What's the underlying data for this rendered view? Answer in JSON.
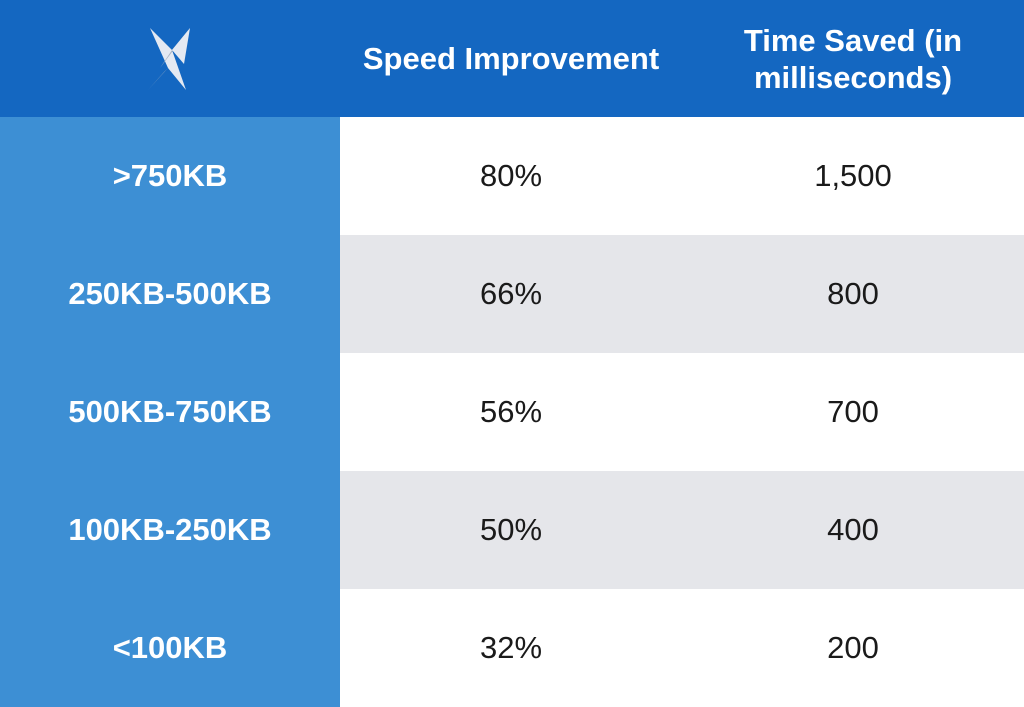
{
  "colors": {
    "header_bg": "#1467c1",
    "label_col_bg": "#3d8fd4",
    "row_light": "#ffffff",
    "row_shaded": "#e5e6ea",
    "logo_light": "#e4e9f2",
    "logo_dark": "#a9b3c2"
  },
  "logo": {
    "icon": "brand-logo-icon"
  },
  "chart_data": {
    "type": "table",
    "columns": [
      "",
      "Speed Improvement",
      "Time Saved (in milliseconds)"
    ],
    "column_lines": [
      [
        "Speed Improvement"
      ],
      [
        "Time Saved (in",
        "milliseconds)"
      ]
    ],
    "rows": [
      {
        "label": ">750KB",
        "speed_improvement": "80%",
        "time_saved": "1,500"
      },
      {
        "label": "250KB-500KB",
        "speed_improvement": "66%",
        "time_saved": "800"
      },
      {
        "label": "500KB-750KB",
        "speed_improvement": "56%",
        "time_saved": "700"
      },
      {
        "label": "100KB-250KB",
        "speed_improvement": "50%",
        "time_saved": "400"
      },
      {
        "label": "<100KB",
        "speed_improvement": "32%",
        "time_saved": "200"
      }
    ]
  }
}
